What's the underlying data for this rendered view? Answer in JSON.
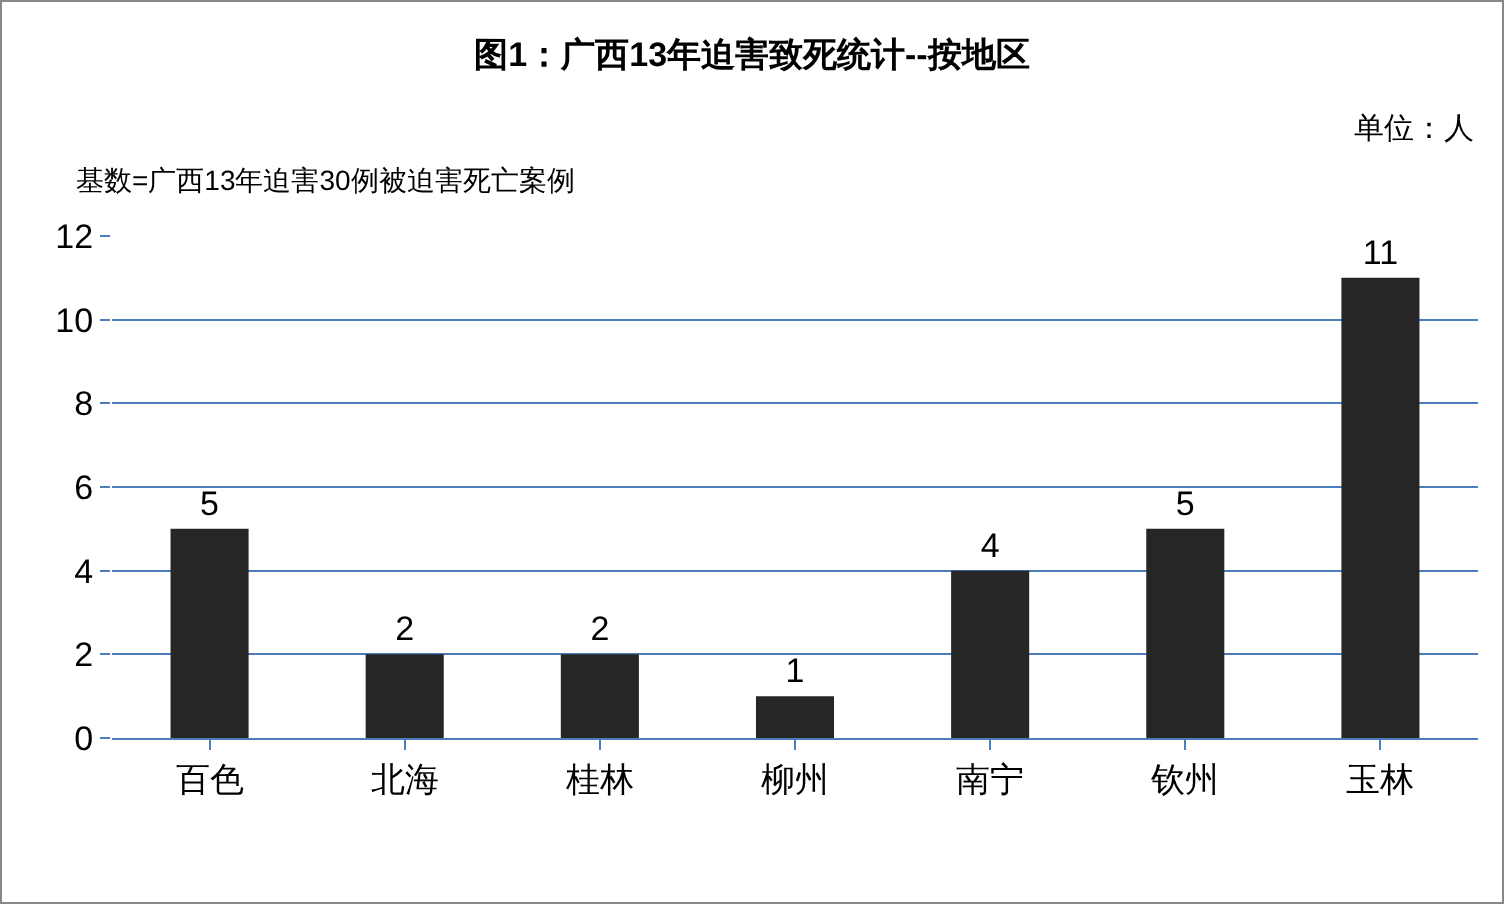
{
  "chart_data": {
    "type": "bar",
    "title": "图1：广西13年迫害致死统计--按地区",
    "annotations": [
      "单位：人",
      "基数=广西13年迫害30例被迫害死亡案例"
    ],
    "categories": [
      "百色",
      "北海",
      "桂林",
      "柳州",
      "南宁",
      "钦州",
      "玉林"
    ],
    "values": [
      5,
      2,
      2,
      1,
      4,
      5,
      11
    ],
    "color": "#262626",
    "ylim": [
      0,
      12
    ],
    "yticks": [
      0,
      2,
      4,
      6,
      8,
      10,
      12
    ],
    "grid": "y",
    "data_labels": true
  }
}
